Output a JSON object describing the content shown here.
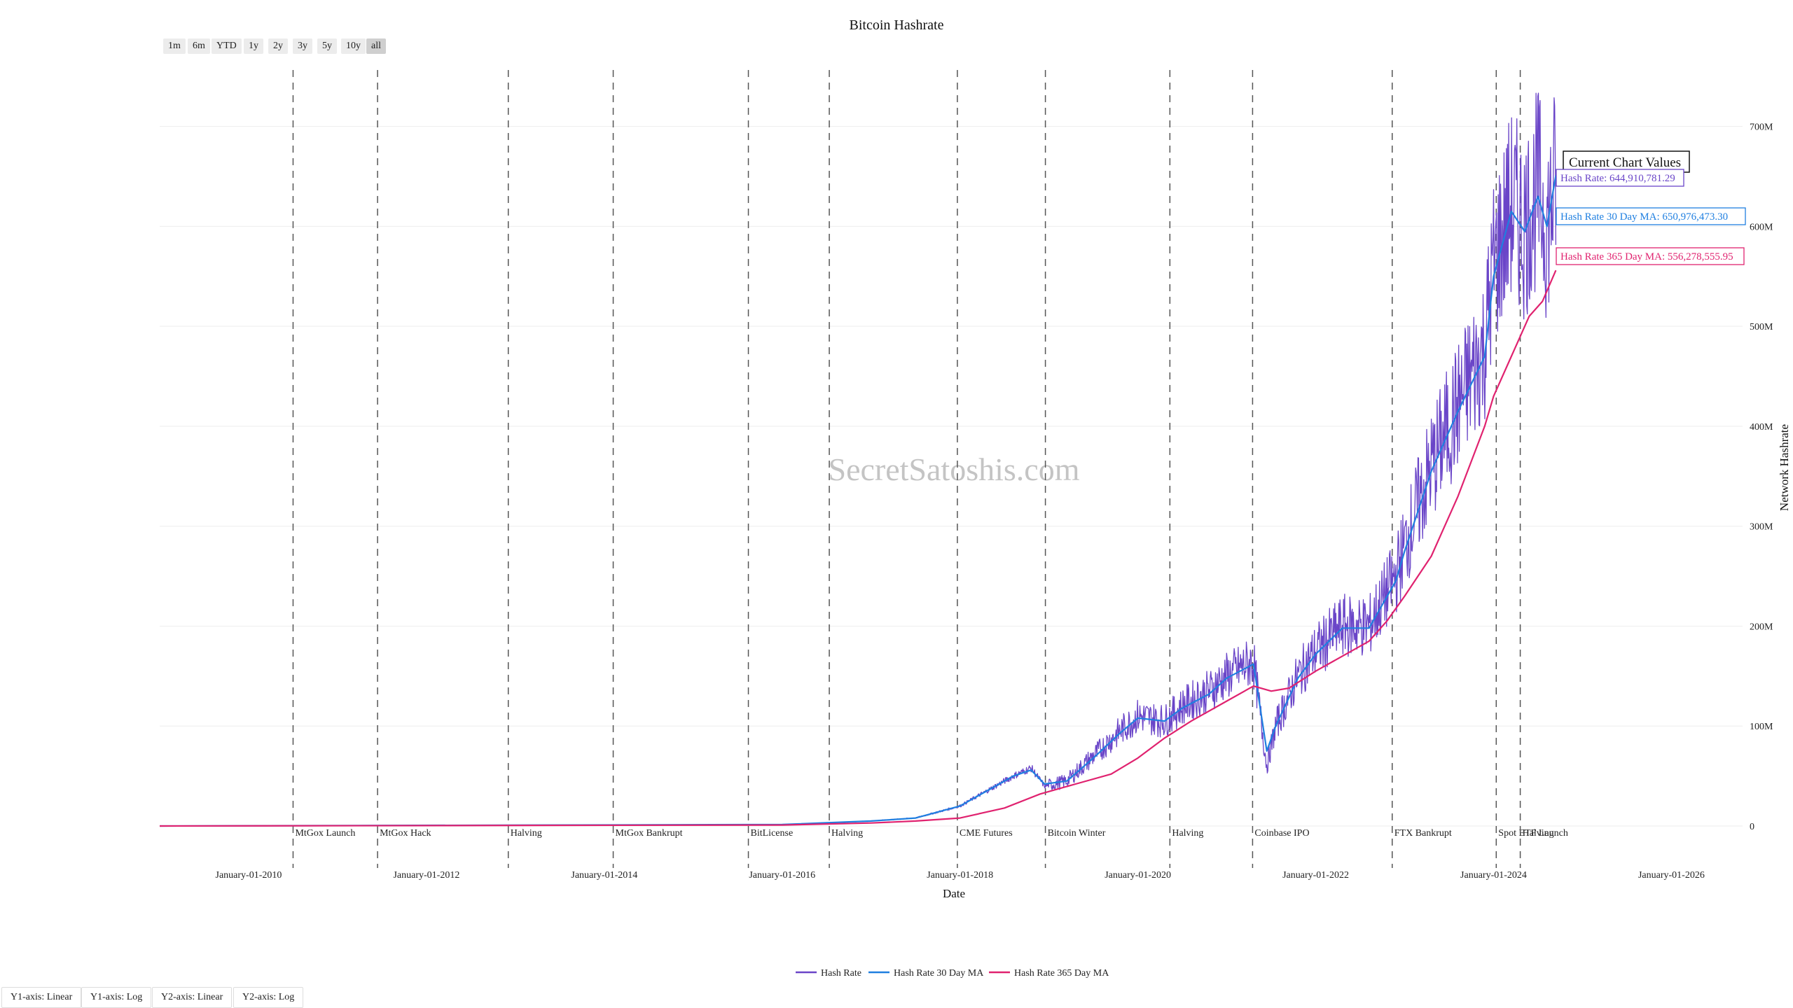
{
  "watermark": "SecretSatoshis.com",
  "range_buttons": [
    {
      "label": "1m",
      "active": false
    },
    {
      "label": "6m",
      "active": false
    },
    {
      "label": "YTD",
      "active": false
    },
    {
      "label": "1y",
      "active": false
    },
    {
      "label": "2y",
      "active": false
    },
    {
      "label": "3y",
      "active": false
    },
    {
      "label": "5y",
      "active": false
    },
    {
      "label": "10y",
      "active": false
    },
    {
      "label": "all",
      "active": true
    }
  ],
  "axis_buttons": [
    "Y1-axis: Linear",
    "Y1-axis: Log",
    "Y2-axis: Linear",
    "Y2-axis: Log"
  ],
  "current_values": {
    "title": "Current Chart Values",
    "items": [
      {
        "text": "Hash Rate: 644,910,781.29",
        "color": "#6a45c8"
      },
      {
        "text": "Hash Rate 30 Day MA: 650,976,473.30",
        "color": "#1f7fe0"
      },
      {
        "text": "Hash Rate 365 Day MA: 556,278,555.95",
        "color": "#e0226f"
      }
    ]
  },
  "chart_data": {
    "type": "line",
    "title": "Bitcoin Hashrate",
    "xlabel": "Date",
    "ylabel": "Network Hashrate",
    "x_range": [
      2009.0,
      2026.8
    ],
    "y_range": [
      0,
      760
    ],
    "y_axis_side": "right",
    "y_unit": "M",
    "y_ticks": [
      {
        "value": 0,
        "label": "0"
      },
      {
        "value": 100,
        "label": "100M"
      },
      {
        "value": 200,
        "label": "200M"
      },
      {
        "value": 300,
        "label": "300M"
      },
      {
        "value": 400,
        "label": "400M"
      },
      {
        "value": 500,
        "label": "500M"
      },
      {
        "value": 600,
        "label": "600M"
      },
      {
        "value": 700,
        "label": "700M"
      }
    ],
    "x_ticks": [
      {
        "value": 2010.0,
        "label": "January-01-2010"
      },
      {
        "value": 2012.0,
        "label": "January-01-2012"
      },
      {
        "value": 2014.0,
        "label": "January-01-2014"
      },
      {
        "value": 2016.0,
        "label": "January-01-2016"
      },
      {
        "value": 2018.0,
        "label": "January-01-2018"
      },
      {
        "value": 2020.0,
        "label": "January-01-2020"
      },
      {
        "value": 2022.0,
        "label": "January-01-2022"
      },
      {
        "value": 2024.0,
        "label": "January-01-2024"
      },
      {
        "value": 2026.0,
        "label": "January-01-2026"
      }
    ],
    "events": [
      {
        "x": 2010.5,
        "label": "MtGox Launch"
      },
      {
        "x": 2011.45,
        "label": "MtGox Hack"
      },
      {
        "x": 2012.92,
        "label": "Halving"
      },
      {
        "x": 2014.1,
        "label": "MtGox Bankrupt"
      },
      {
        "x": 2015.62,
        "label": "BitLicense"
      },
      {
        "x": 2016.53,
        "label": "Halving"
      },
      {
        "x": 2017.97,
        "label": "CME Futures"
      },
      {
        "x": 2018.96,
        "label": "Bitcoin Winter"
      },
      {
        "x": 2020.36,
        "label": "Halving"
      },
      {
        "x": 2021.29,
        "label": "Coinbase IPO"
      },
      {
        "x": 2022.86,
        "label": "FTX Bankrupt"
      },
      {
        "x": 2024.03,
        "label": "Spot ETF Launch"
      },
      {
        "x": 2024.3,
        "label": "Halving"
      }
    ],
    "legend": {
      "placement": "bottom-center",
      "items": [
        {
          "name": "Hash Rate",
          "color": "#6a45c8"
        },
        {
          "name": "Hash Rate 30 Day MA",
          "color": "#1f7fe0"
        },
        {
          "name": "Hash Rate 365 Day MA",
          "color": "#e0226f"
        }
      ]
    },
    "series": [
      {
        "name": "Hash Rate",
        "color": "#6a45c8",
        "noise": true,
        "x": [
          2009.0,
          2016.0,
          2017.0,
          2017.5,
          2018.0,
          2018.3,
          2018.6,
          2018.8,
          2018.95,
          2019.2,
          2019.5,
          2019.8,
          2020.0,
          2020.3,
          2020.5,
          2020.8,
          2021.0,
          2021.3,
          2021.45,
          2021.55,
          2021.8,
          2022.0,
          2022.3,
          2022.6,
          2022.9,
          2023.0,
          2023.3,
          2023.6,
          2023.9,
          2024.0,
          2024.2,
          2024.35,
          2024.5,
          2024.6,
          2024.7
        ],
        "y": [
          0,
          1.5,
          5,
          8,
          20,
          35,
          50,
          58,
          40,
          45,
          70,
          95,
          110,
          105,
          120,
          135,
          150,
          165,
          60,
          100,
          150,
          175,
          200,
          200,
          250,
          280,
          360,
          420,
          480,
          560,
          620,
          600,
          640,
          600,
          645
        ]
      },
      {
        "name": "Hash Rate 30 Day MA",
        "color": "#1f7fe0",
        "noise": false,
        "x": [
          2009.0,
          2016.0,
          2017.0,
          2017.5,
          2018.0,
          2018.3,
          2018.6,
          2018.8,
          2018.95,
          2019.2,
          2019.5,
          2019.8,
          2020.0,
          2020.3,
          2020.5,
          2020.8,
          2021.0,
          2021.3,
          2021.45,
          2021.55,
          2021.8,
          2022.0,
          2022.3,
          2022.6,
          2022.9,
          2023.0,
          2023.3,
          2023.6,
          2023.9,
          2024.0,
          2024.2,
          2024.35,
          2024.5,
          2024.6,
          2024.7
        ],
        "y": [
          0,
          1.5,
          5,
          8,
          20,
          35,
          50,
          56,
          42,
          45,
          68,
          93,
          108,
          105,
          118,
          132,
          148,
          162,
          75,
          100,
          148,
          172,
          198,
          198,
          245,
          275,
          355,
          415,
          470,
          550,
          615,
          595,
          630,
          600,
          651
        ]
      },
      {
        "name": "Hash Rate 365 Day MA",
        "color": "#e0226f",
        "noise": false,
        "x": [
          2009.0,
          2016.0,
          2017.0,
          2017.5,
          2018.0,
          2018.5,
          2018.9,
          2019.3,
          2019.7,
          2020.0,
          2020.3,
          2020.6,
          2021.0,
          2021.3,
          2021.5,
          2021.7,
          2022.0,
          2022.3,
          2022.6,
          2022.8,
          2023.0,
          2023.3,
          2023.6,
          2023.9,
          2024.0,
          2024.2,
          2024.4,
          2024.55,
          2024.7
        ],
        "y": [
          0,
          1,
          3,
          5,
          8,
          18,
          32,
          42,
          52,
          68,
          88,
          105,
          125,
          140,
          135,
          138,
          155,
          170,
          185,
          205,
          230,
          270,
          330,
          400,
          430,
          470,
          510,
          525,
          556
        ]
      }
    ]
  }
}
